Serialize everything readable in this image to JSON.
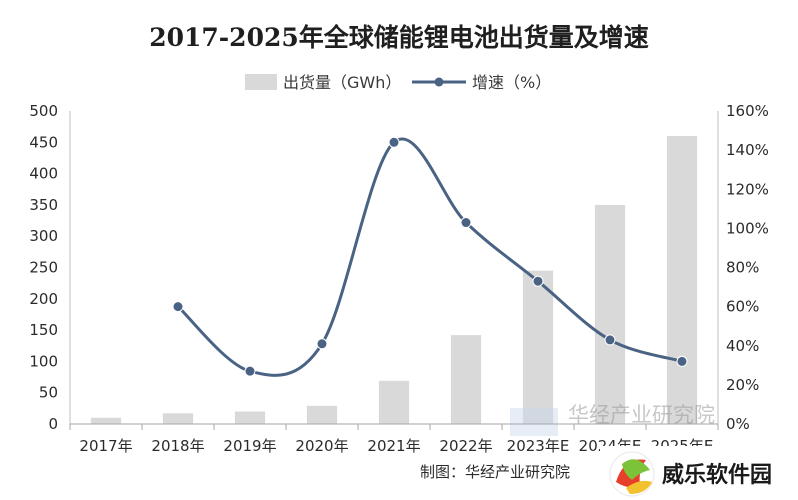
{
  "chart_data": {
    "type": "bar",
    "title": "2017-2025年全球储能锂电池出货量及增速",
    "categories": [
      "2017年",
      "2018年",
      "2019年",
      "2020年",
      "2021年",
      "2022年",
      "2023年E",
      "2024年E",
      "2025年E"
    ],
    "series": [
      {
        "name": "出货量（GWh）",
        "type": "bar",
        "axis": "left",
        "color": "#d9d9d9",
        "values": [
          10,
          17,
          20,
          29,
          69,
          142,
          245,
          350,
          460
        ]
      },
      {
        "name": "增速（%）",
        "type": "line",
        "axis": "right",
        "color": "#4a6384",
        "values": [
          null,
          60,
          27,
          41,
          144,
          103,
          73,
          43,
          32
        ]
      }
    ],
    "y_left": {
      "range": [
        0,
        500
      ],
      "ticks": [
        "0",
        "50",
        "100",
        "150",
        "200",
        "250",
        "300",
        "350",
        "400",
        "450",
        "500"
      ]
    },
    "y_right": {
      "range": [
        0,
        160
      ],
      "ticks": [
        "0%",
        "20%",
        "40%",
        "60%",
        "80%",
        "100%",
        "120%",
        "140%",
        "160%"
      ]
    },
    "legend_position": "top-center",
    "grid": false
  },
  "source_note": "制图：华经产业研究院",
  "watermark_text": "华经产业研究院",
  "logo_text": "威乐软件园"
}
